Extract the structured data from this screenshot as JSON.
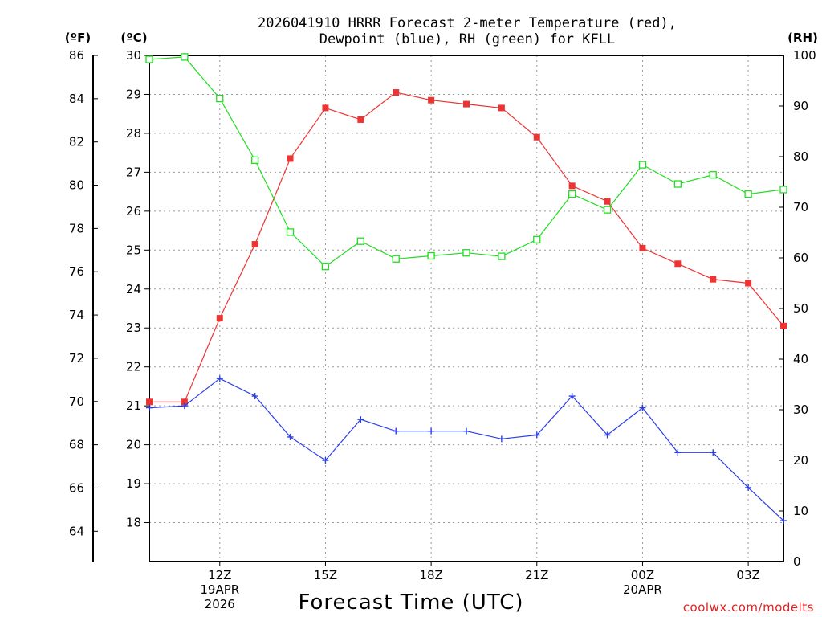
{
  "chart_data": {
    "type": "line",
    "title_lines": [
      "2026041910 HRRR Forecast 2-meter Temperature (red),",
      "Dewpoint (blue), RH (green) for KFLL"
    ],
    "unit_labels": {
      "fahrenheit": "(ºF)",
      "celsius": "(ºC)",
      "rh": "(RH)"
    },
    "xlabel": "Forecast Time (UTC)",
    "credit": "coolwx.com/modelts",
    "x_hours": [
      10,
      11,
      12,
      13,
      14,
      15,
      16,
      17,
      18,
      19,
      20,
      21,
      22,
      23,
      24,
      25,
      26,
      27,
      28
    ],
    "x_range": [
      10,
      28
    ],
    "x_ticks": [
      {
        "hour": 12,
        "lines": [
          "12Z",
          "19APR",
          "2026"
        ]
      },
      {
        "hour": 15,
        "lines": [
          "15Z"
        ]
      },
      {
        "hour": 18,
        "lines": [
          "18Z"
        ]
      },
      {
        "hour": 21,
        "lines": [
          "21Z"
        ]
      },
      {
        "hour": 24,
        "lines": [
          "00Z",
          "20APR"
        ]
      },
      {
        "hour": 27,
        "lines": [
          "03Z"
        ]
      }
    ],
    "celsius_range": [
      17,
      30
    ],
    "celsius_ticks": [
      "30",
      "29",
      "28",
      "27",
      "26",
      "25",
      "24",
      "23",
      "22",
      "21",
      "20",
      "19",
      "18"
    ],
    "fahrenheit_ticks": [
      "86",
      "84",
      "82",
      "80",
      "78",
      "76",
      "74",
      "72",
      "70",
      "68",
      "66",
      "64"
    ],
    "rh_range": [
      0,
      100
    ],
    "rh_ticks": [
      "100",
      "90",
      "80",
      "70",
      "60",
      "50",
      "40",
      "30",
      "20",
      "10",
      "0"
    ],
    "series": [
      {
        "name": "Temperature",
        "units": "C",
        "color": "#ee3333",
        "marker": "filled-square",
        "values": [
          21.1,
          21.1,
          23.25,
          25.15,
          27.35,
          28.65,
          28.35,
          29.05,
          28.85,
          28.75,
          28.65,
          27.9,
          26.65,
          26.25,
          25.05,
          24.65,
          24.25,
          24.15,
          23.05
        ]
      },
      {
        "name": "Dewpoint",
        "units": "C",
        "color": "#2b3fe8",
        "marker": "plus",
        "values": [
          20.95,
          21.0,
          21.7,
          21.25,
          20.2,
          19.6,
          20.65,
          20.35,
          20.35,
          20.35,
          20.15,
          20.25,
          21.25,
          20.25,
          20.95,
          19.8,
          19.8,
          18.9,
          18.05
        ]
      },
      {
        "name": "RH",
        "units": "%",
        "color": "#22dd22",
        "marker": "open-square",
        "values": [
          99.2,
          99.7,
          91.5,
          79.3,
          65.1,
          58.3,
          63.3,
          59.8,
          60.4,
          61.0,
          60.3,
          63.6,
          72.6,
          69.5,
          78.4,
          74.6,
          76.4,
          72.6,
          73.5
        ]
      }
    ]
  }
}
